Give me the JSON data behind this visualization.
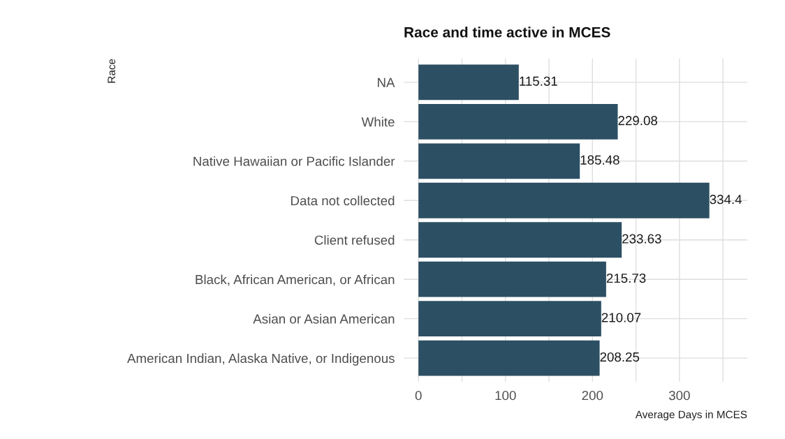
{
  "chart_data": {
    "type": "bar",
    "orientation": "horizontal",
    "title": "Race and time active in MCES",
    "xlabel": "Average Days in MCES",
    "ylabel": "Race",
    "categories": [
      "NA",
      "White",
      "Native Hawaiian or Pacific Islander",
      "Data not collected",
      "Client refused",
      "Black, African American, or African",
      "Asian or Asian American",
      "American Indian, Alaska Native, or Indigenous"
    ],
    "values": [
      115.31,
      229.08,
      185.48,
      334.4,
      233.63,
      215.73,
      210.07,
      208.25
    ],
    "color": "#2c4f63",
    "data_labels": true,
    "xlim": [
      -17,
      378
    ],
    "xticks": [
      0,
      {
        "value": 50,
        "label": null
      },
      100,
      {
        "value": 150,
        "label": null
      },
      200,
      {
        "value": 250,
        "label": null
      },
      300,
      {
        "value": 350,
        "label": null
      }
    ],
    "grid": true
  }
}
